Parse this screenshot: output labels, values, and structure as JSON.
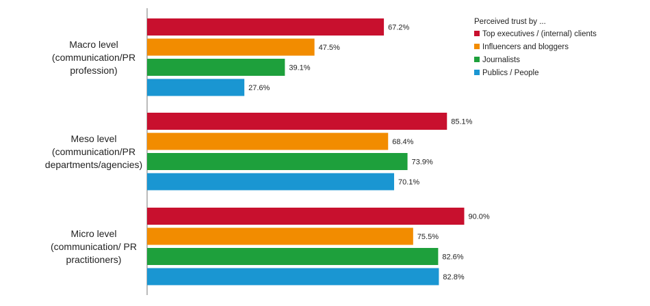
{
  "chart_data": {
    "type": "bar",
    "orientation": "horizontal",
    "categories": [
      [
        "Macro level",
        "(communication/PR",
        "profession)"
      ],
      [
        "Meso level",
        "(communication/PR",
        "departments/agencies)"
      ],
      [
        "Micro level",
        "(communication/ PR",
        "practitioners)"
      ]
    ],
    "series": [
      {
        "name": "Top executives / (internal) clients",
        "color": "#c8102e",
        "values": [
          67.2,
          85.1,
          90.0
        ],
        "labels": [
          "67.2%",
          "85.1%",
          "90.0%"
        ]
      },
      {
        "name": "Influencers and bloggers",
        "color": "#f28c00",
        "values": [
          47.5,
          68.4,
          75.5
        ],
        "labels": [
          "47.5%",
          "68.4%",
          "75.5%"
        ]
      },
      {
        "name": "Journalists",
        "color": "#1ea03c",
        "values": [
          39.1,
          73.9,
          82.6
        ],
        "labels": [
          "39.1%",
          "73.9%",
          "82.6%"
        ]
      },
      {
        "name": "Publics / People",
        "color": "#1a96d2",
        "values": [
          27.6,
          70.1,
          82.8
        ],
        "labels": [
          "27.6%",
          "70.1%",
          "82.8%"
        ]
      }
    ],
    "legend_title": "Perceived trust by ...",
    "legend_position": "top-right",
    "xlim": [
      0,
      100
    ],
    "grid": false
  }
}
